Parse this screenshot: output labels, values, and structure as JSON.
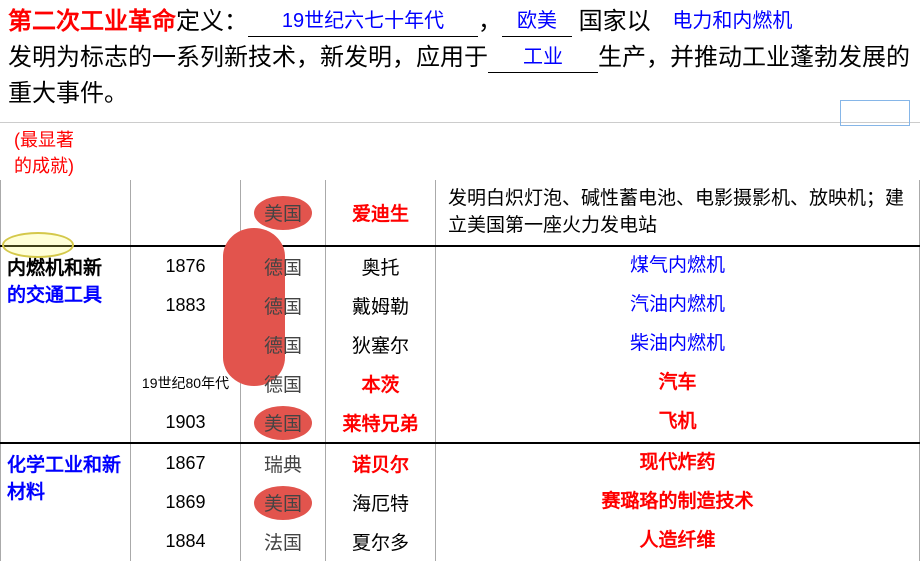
{
  "definition": {
    "title": "第二次工业革命",
    "label": "定义：",
    "blank1": "19世纪六七十年代",
    "sep1": "，",
    "blank2": "欧美",
    "seg2a": "国家以",
    "blank3": "电力和内燃机",
    "seg3": "发明为标志的一系列新技术，新发明，应用于",
    "blank4": "工业",
    "seg4": "生产，并推动工业蓬勃发展的重大事件。"
  },
  "note": {
    "text1": "(最显著",
    "text2": "的成就)"
  },
  "rows": [
    {
      "section": "top",
      "cat": "",
      "year": "",
      "country": "美国",
      "country_oval": "single",
      "person": "爱迪生",
      "person_color": "red",
      "inv": "发明白炽灯泡、碱性蓄电池、电影摄影机、放映机；建立美国第一座火力发电站",
      "inv_color": "black",
      "inv_align": "left"
    },
    {
      "section": "engine",
      "cat_html": true,
      "year": "1876",
      "country": "德国",
      "country_oval": "tall",
      "person": "奥托",
      "person_color": "black",
      "inv": "煤气内燃机",
      "inv_color": "blue"
    },
    {
      "section": "engine",
      "year": "1883",
      "country": "德国",
      "country_oval": "none",
      "person": "戴姆勒",
      "person_color": "black",
      "inv": "汽油内燃机",
      "inv_color": "blue"
    },
    {
      "section": "engine",
      "year": "",
      "country": "德国",
      "country_oval": "none",
      "person": "狄塞尔",
      "person_color": "black",
      "inv": "柴油内燃机",
      "inv_color": "blue"
    },
    {
      "section": "engine",
      "year_small": true,
      "year": "19世纪80年代",
      "country": "德国",
      "country_oval": "none",
      "person": "本茨",
      "person_color": "red",
      "inv": "汽车",
      "inv_color": "red"
    },
    {
      "section": "engine",
      "year": "1903",
      "country": "美国",
      "country_oval": "single",
      "person": "莱特兄弟",
      "person_color": "red",
      "inv": "飞机",
      "inv_color": "red"
    },
    {
      "section": "chem",
      "cat": "化学工业和新材料",
      "year": "1867",
      "country": "瑞典",
      "country_oval": "none",
      "person": "诺贝尔",
      "person_color": "red",
      "inv": "现代炸药",
      "inv_color": "red"
    },
    {
      "section": "chem",
      "year": "1869",
      "country": "美国",
      "country_oval": "single",
      "person": "海厄特",
      "person_color": "black",
      "inv": "赛璐珞的制造技术",
      "inv_color": "red"
    },
    {
      "section": "chem",
      "year": "1884",
      "country": "法国",
      "country_oval": "none",
      "person": "夏尔多",
      "person_color": "black",
      "inv": "人造纤维",
      "inv_color": "red"
    }
  ],
  "engine_cat": {
    "hl": "内燃机",
    "rest1": "和新",
    "rest2": "的交通工具"
  },
  "colors": {
    "red": "#ff0000",
    "blue": "#0000ff",
    "oval": "#e2544d"
  }
}
